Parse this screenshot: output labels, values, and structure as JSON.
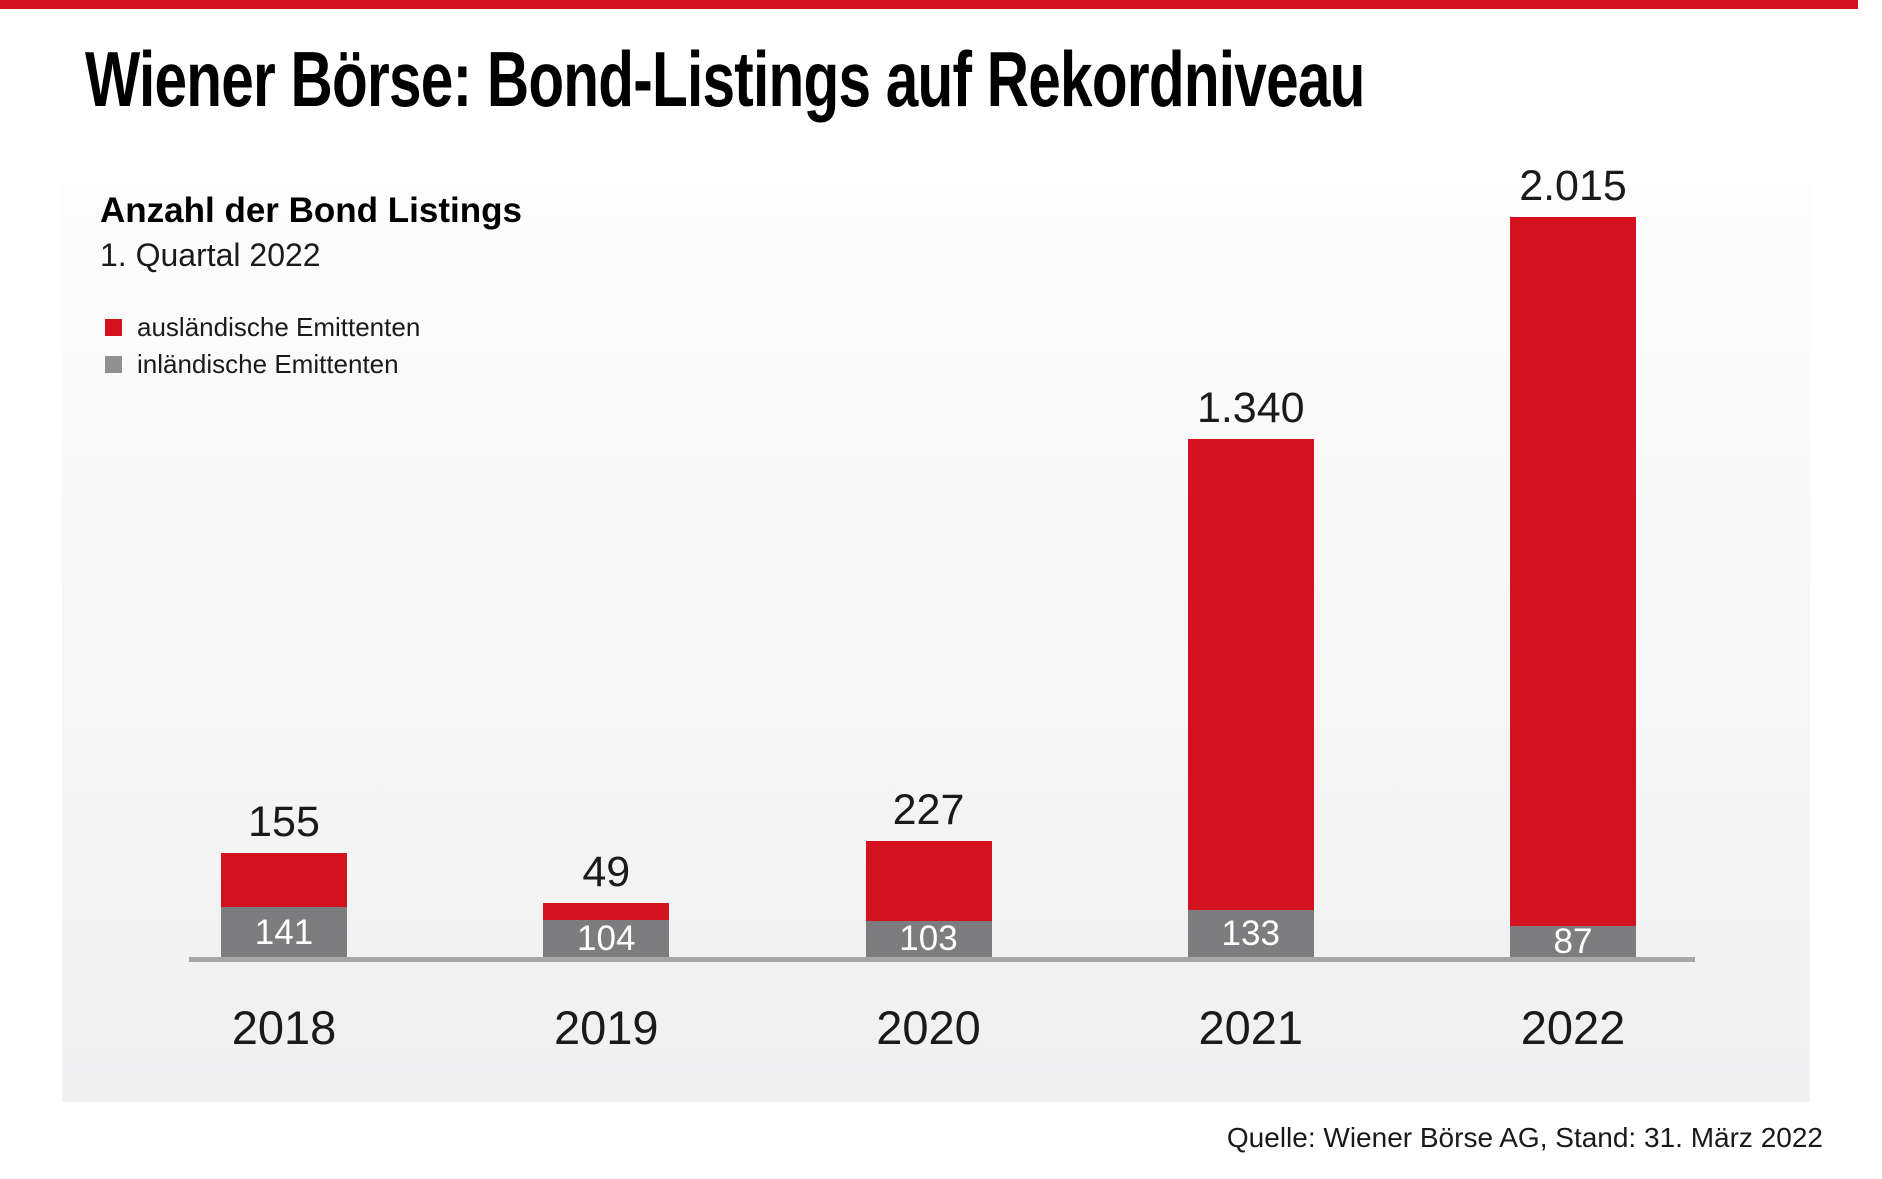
{
  "header": {
    "title": "Wiener Börse: Bond-Listings auf Rekordniveau"
  },
  "footer": {
    "source": "Quelle: Wiener Börse AG, Stand: 31. März 2022"
  },
  "colors": {
    "accent_red": "#d2131f",
    "bar_gray": "#7d7d7f",
    "legend_gray": "#8f9091",
    "axis_gray": "#a6a6a6",
    "label_black": "#1a1a1a",
    "label_white": "#ffffff"
  },
  "chart_data": {
    "type": "bar",
    "stacked": true,
    "title": "Anzahl der Bond Listings",
    "subtitle": "1. Quartal 2022",
    "categories": [
      "2018",
      "2019",
      "2020",
      "2021",
      "2022"
    ],
    "series": [
      {
        "name": "ausländische Emittenten",
        "color": "#d2131f",
        "values": [
          155,
          49,
          227,
          1340,
          2015
        ],
        "value_labels": [
          "155",
          "49",
          "227",
          "1.340",
          "2.015"
        ],
        "label_position": "above-bar",
        "label_color": "#1a1a1a"
      },
      {
        "name": "inländische Emittenten",
        "color": "#7d7d7f",
        "legend_color": "#8f9091",
        "values": [
          141,
          104,
          103,
          133,
          87
        ],
        "value_labels": [
          "141",
          "104",
          "103",
          "133",
          "87"
        ],
        "label_position": "inside-bar",
        "label_color": "#ffffff"
      }
    ],
    "legend_position": "top-left",
    "grid": false,
    "baseline_visible": true,
    "ylim": [
      0,
      2300
    ]
  }
}
